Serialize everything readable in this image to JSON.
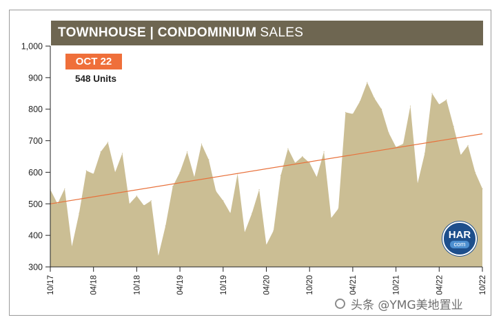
{
  "title": {
    "bold": "TOWNHOUSE | CONDOMINIUM",
    "light": "SALES"
  },
  "legend": {
    "badge": "OCT 22",
    "units": "548 Units",
    "badge_color": "#ef6f3a"
  },
  "logo": {
    "icon": "har-logo",
    "line1": "HAR",
    "line2": "com"
  },
  "watermark": "头条 @YMG美地置业",
  "colors": {
    "area_fill": "#cbbe94",
    "trend_line": "#e8703a",
    "title_bar": "#6e6651"
  },
  "chart_data": {
    "type": "area",
    "title": "TOWNHOUSE | CONDOMINIUM SALES",
    "ylim": [
      300,
      1000
    ],
    "y_ticks": [
      300,
      400,
      500,
      600,
      700,
      800,
      900,
      1000
    ],
    "y_tick_labels": [
      "300",
      "400",
      "500",
      "600",
      "700",
      "800",
      "900",
      "1,000"
    ],
    "x_tick_labels": [
      "10/17",
      "04/18",
      "10/18",
      "04/19",
      "10/19",
      "04/20",
      "10/20",
      "04/21",
      "10/21",
      "04/22",
      "10/22"
    ],
    "x_tick_index": [
      0,
      6,
      12,
      18,
      24,
      30,
      36,
      42,
      48,
      54,
      60
    ],
    "grid": false,
    "series": [
      {
        "values": [
          545,
          500,
          548,
          365,
          470,
          605,
          595,
          665,
          695,
          600,
          660,
          500,
          525,
          495,
          510,
          335,
          430,
          555,
          600,
          665,
          585,
          690,
          640,
          540,
          510,
          470,
          595,
          410,
          470,
          545,
          370,
          415,
          590,
          675,
          630,
          650,
          630,
          585,
          665,
          455,
          485,
          790,
          785,
          825,
          885,
          835,
          800,
          725,
          680,
          690,
          810,
          565,
          660,
          850,
          815,
          830,
          745,
          655,
          685,
          600,
          548
        ]
      }
    ],
    "trend": {
      "start": 500,
      "end": 722
    }
  }
}
